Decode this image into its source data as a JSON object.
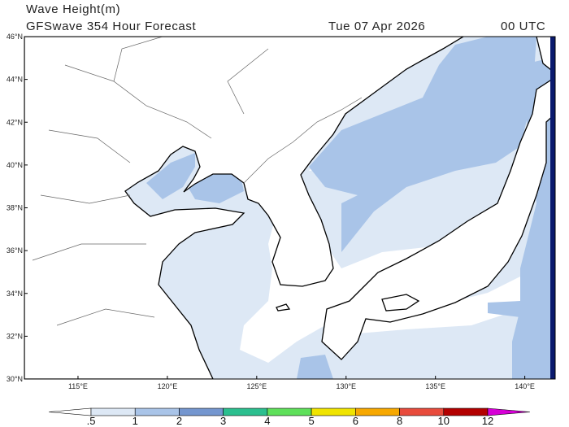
{
  "header": {
    "title": "Wave Height(m)",
    "subtitle": "GFSwave 354 Hour Forecast",
    "date": "Tue 07 Apr 2026",
    "time": "00 UTC"
  },
  "map": {
    "lonlim": [
      112,
      141.7
    ],
    "latlim": [
      30,
      46
    ],
    "xticks": [
      {
        "value": 115,
        "label": "115°E"
      },
      {
        "value": 120,
        "label": "120°E"
      },
      {
        "value": 125,
        "label": "125°E"
      },
      {
        "value": 130,
        "label": "130°E"
      },
      {
        "value": 135,
        "label": "135°E"
      },
      {
        "value": 140,
        "label": "140°E"
      }
    ],
    "yticks": [
      {
        "value": 30,
        "label": "30°N"
      },
      {
        "value": 32,
        "label": "32°N"
      },
      {
        "value": 34,
        "label": "34°N"
      },
      {
        "value": 36,
        "label": "36°N"
      },
      {
        "value": 38,
        "label": "38°N"
      },
      {
        "value": 40,
        "label": "40°N"
      },
      {
        "value": 42,
        "label": "42°N"
      },
      {
        "value": 44,
        "label": "44°N"
      },
      {
        "value": 46,
        "label": "46°N"
      }
    ]
  },
  "colorbar": {
    "levels": [
      {
        "value": 0.5,
        "label": ".5"
      },
      1,
      2,
      3,
      4,
      5,
      6,
      8,
      10,
      12
    ],
    "colors": [
      "#ffffff",
      "#dde8f5",
      "#a9c4e8",
      "#7496cf",
      "#2bbf8f",
      "#5ee05a",
      "#f0e400",
      "#f7a800",
      "#e84b3c",
      "#b30000",
      "#d600d6"
    ]
  }
}
